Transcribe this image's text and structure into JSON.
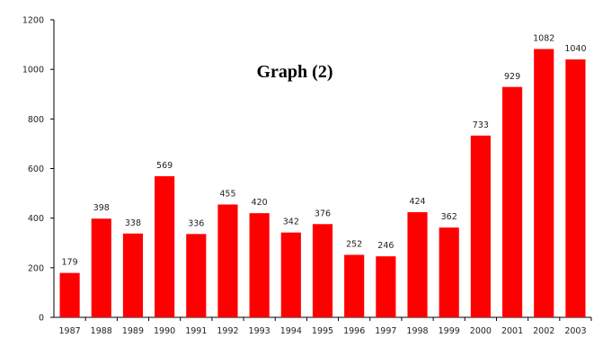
{
  "chart_data": {
    "type": "bar",
    "title": "Graph (2)",
    "xlabel": "",
    "ylabel": "",
    "categories": [
      "1987",
      "1988",
      "1989",
      "1990",
      "1991",
      "1992",
      "1993",
      "1994",
      "1995",
      "1996",
      "1997",
      "1998",
      "1999",
      "2000",
      "2001",
      "2002",
      "2003"
    ],
    "values": [
      179,
      398,
      338,
      569,
      336,
      455,
      420,
      342,
      376,
      252,
      246,
      424,
      362,
      733,
      929,
      1082,
      1040
    ],
    "ylim": [
      0,
      1200
    ],
    "yticks": [
      0,
      200,
      400,
      600,
      800,
      1000,
      1200
    ],
    "grid": false,
    "legend": "none",
    "bar_color": "#ff0000",
    "axis_color": "#000000"
  }
}
